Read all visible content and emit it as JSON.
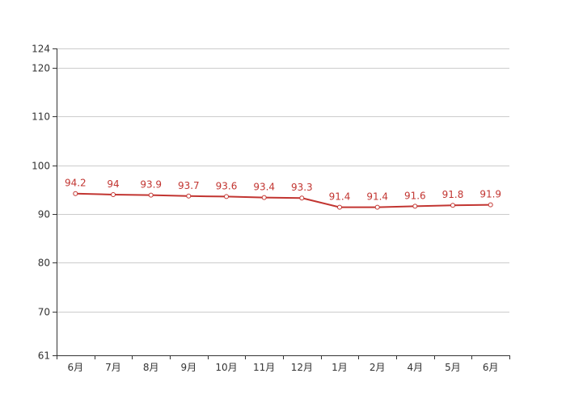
{
  "chart_data": {
    "type": "line",
    "title": "",
    "xlabel": "",
    "ylabel": "",
    "categories": [
      "6月",
      "7月",
      "8月",
      "9月",
      "10月",
      "11月",
      "12月",
      "1月",
      "2月",
      "4月",
      "5月",
      "6月"
    ],
    "series": [
      {
        "values": [
          94.2,
          94,
          93.9,
          93.7,
          93.6,
          93.4,
          93.3,
          91.4,
          91.4,
          91.6,
          91.8,
          91.9
        ],
        "data_labels": [
          "94.2",
          "94",
          "93.9",
          "93.7",
          "93.6",
          "93.4",
          "93.3",
          "91.4",
          "91.4",
          "91.6",
          "91.8",
          "91.9"
        ],
        "color": "#c23531"
      }
    ],
    "ylim": [
      61,
      124
    ],
    "yticks": [
      61,
      70,
      80,
      90,
      100,
      110,
      120,
      124
    ],
    "ytick_labels": [
      "61",
      "70",
      "80",
      "90",
      "100",
      "110",
      "120",
      "124"
    ],
    "grid": true,
    "legend": "none",
    "colors": {
      "line": "#c23531",
      "label": "#c23531",
      "grid": "#cccccc",
      "axis": "#333333",
      "tick_text": "#333333",
      "marker_fill": "#ffffff"
    }
  }
}
